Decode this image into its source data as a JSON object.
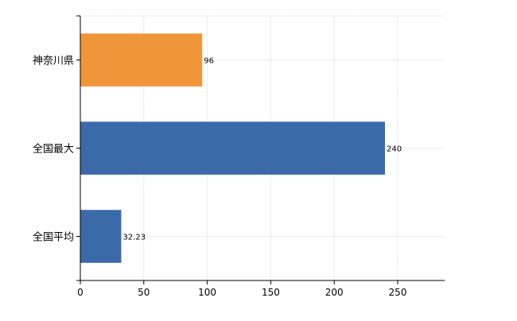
{
  "chart_data": {
    "type": "bar",
    "orientation": "horizontal",
    "categories": [
      "神奈川県",
      "全国最大",
      "全国平均"
    ],
    "values": [
      96,
      240,
      32.23
    ],
    "value_labels": [
      "96",
      "240",
      "32.23"
    ],
    "colors": [
      "#f0963a",
      "#3a6aa7",
      "#3a6aa7"
    ],
    "xlim": [
      0,
      287
    ],
    "xticks": [
      0,
      50,
      100,
      150,
      200,
      250
    ],
    "xtick_labels": [
      "0",
      "50",
      "100",
      "150",
      "200",
      "250"
    ],
    "grid": true,
    "title": "",
    "xlabel": "",
    "ylabel": ""
  }
}
